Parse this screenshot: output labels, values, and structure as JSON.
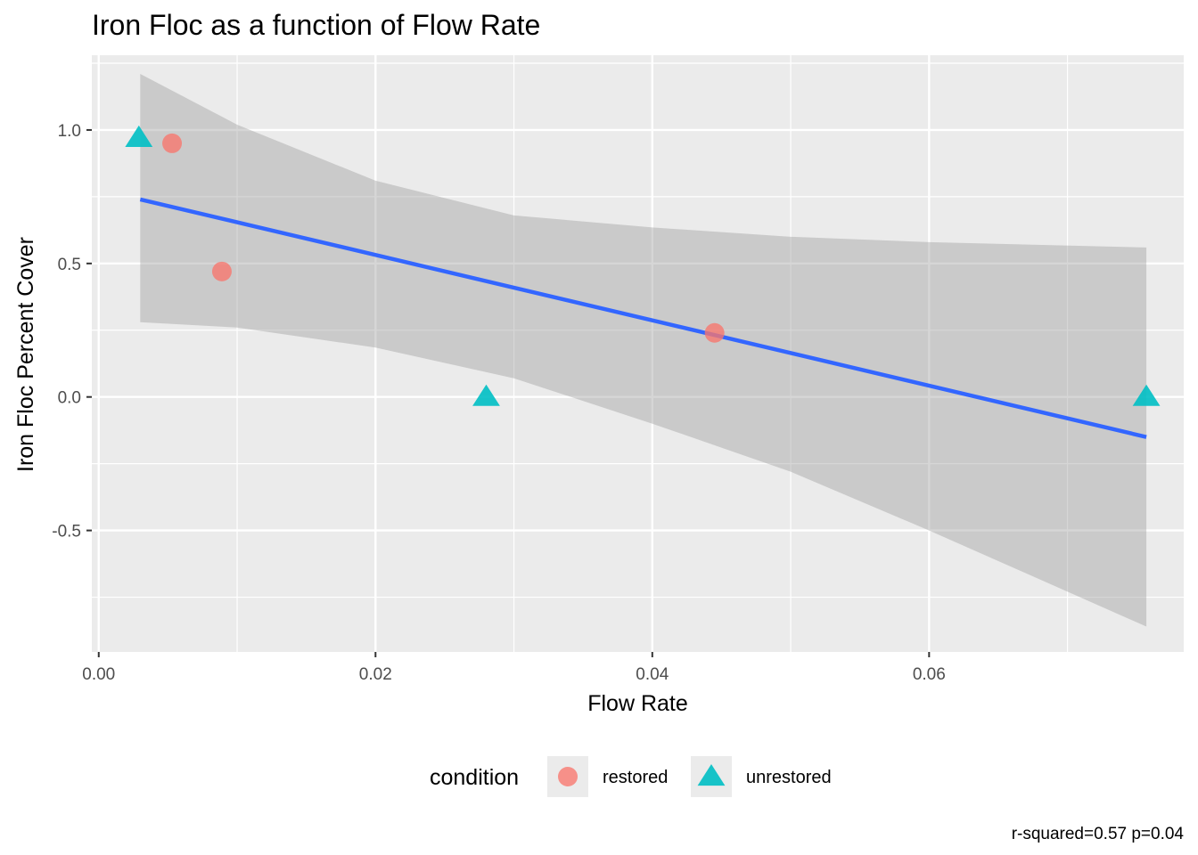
{
  "chart_data": {
    "type": "scatter",
    "title": "Iron Floc as a function of Flow Rate",
    "xlabel": "Flow Rate",
    "ylabel": "Iron Floc Percent Cover",
    "xlim": [
      -0.0005,
      0.0784
    ],
    "ylim": [
      -0.955,
      1.28
    ],
    "x_ticks": [
      0.0,
      0.02,
      0.04,
      0.06
    ],
    "x_tick_labels": [
      "0.00",
      "0.02",
      "0.04",
      "0.06"
    ],
    "y_ticks": [
      -0.5,
      0.0,
      0.5,
      1.0
    ],
    "y_tick_labels": [
      "-0.5",
      "0.0",
      "0.5",
      "1.0"
    ],
    "grid": true,
    "legend": {
      "title": "condition",
      "position": "bottom",
      "entries": [
        {
          "name": "restored",
          "shape": "circle",
          "color": "#F8766D"
        },
        {
          "name": "unrestored",
          "shape": "triangle",
          "color": "#00BFC4"
        }
      ]
    },
    "series": [
      {
        "name": "restored",
        "shape": "circle",
        "color": "#F8766D",
        "points": [
          {
            "x": 0.0053,
            "y": 0.95
          },
          {
            "x": 0.0089,
            "y": 0.47
          },
          {
            "x": 0.0445,
            "y": 0.24
          }
        ]
      },
      {
        "name": "unrestored",
        "shape": "triangle",
        "color": "#00BFC4",
        "points": [
          {
            "x": 0.0029,
            "y": 0.97
          },
          {
            "x": 0.028,
            "y": 0.0
          },
          {
            "x": 0.0757,
            "y": 0.0
          }
        ]
      }
    ],
    "fit": {
      "method": "lm",
      "color": "#3366FF",
      "band_color": "#999999",
      "line": [
        {
          "x": 0.003,
          "y": 0.74
        },
        {
          "x": 0.0757,
          "y": -0.15
        }
      ],
      "band": [
        {
          "x": 0.003,
          "upper": 1.21,
          "lower": 0.28
        },
        {
          "x": 0.01,
          "upper": 1.02,
          "lower": 0.26
        },
        {
          "x": 0.02,
          "upper": 0.81,
          "lower": 0.185
        },
        {
          "x": 0.03,
          "upper": 0.68,
          "lower": 0.07
        },
        {
          "x": 0.04,
          "upper": 0.635,
          "lower": -0.1
        },
        {
          "x": 0.05,
          "upper": 0.6,
          "lower": -0.28
        },
        {
          "x": 0.06,
          "upper": 0.58,
          "lower": -0.5
        },
        {
          "x": 0.0757,
          "upper": 0.56,
          "lower": -0.86
        }
      ]
    },
    "caption": "r-squared=0.57 p=0.04"
  }
}
